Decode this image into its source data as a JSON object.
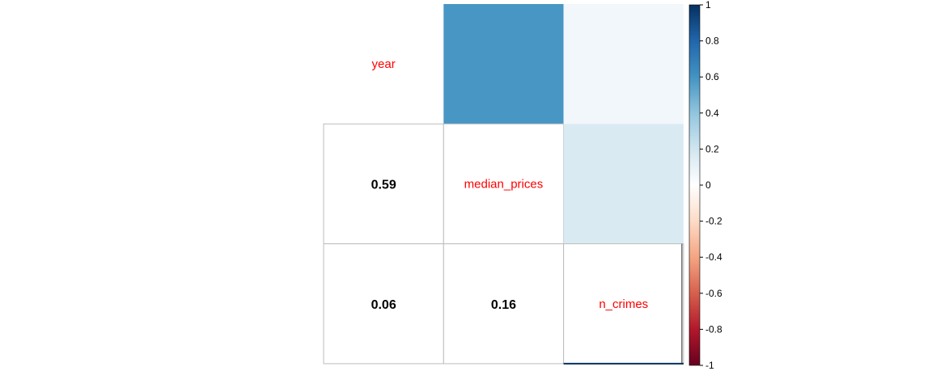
{
  "chart_data": {
    "type": "heatmap",
    "title": "",
    "variables": [
      "year",
      "median_prices",
      "n_crimes"
    ],
    "matrix": [
      [
        1,
        0.59,
        0.06
      ],
      [
        0.59,
        1,
        0.16
      ],
      [
        0.06,
        0.16,
        1
      ]
    ],
    "upper_method": "square",
    "lower_method": "number",
    "diagonal_label_color": "#ff0000",
    "number_color": "#000000",
    "colorbar": {
      "range": [
        -1,
        1
      ],
      "ticks": [
        "1",
        "0.8",
        "0.6",
        "0.4",
        "0.2",
        "0",
        "-0.2",
        "-0.4",
        "-0.6",
        "-0.8",
        "-1"
      ],
      "colors": [
        "#67001F",
        "#B2182B",
        "#D6604D",
        "#F4A582",
        "#FDDBC7",
        "#FFFFFF",
        "#D1E5F0",
        "#92C5DE",
        "#4393C3",
        "#2166AC",
        "#053061"
      ]
    }
  }
}
